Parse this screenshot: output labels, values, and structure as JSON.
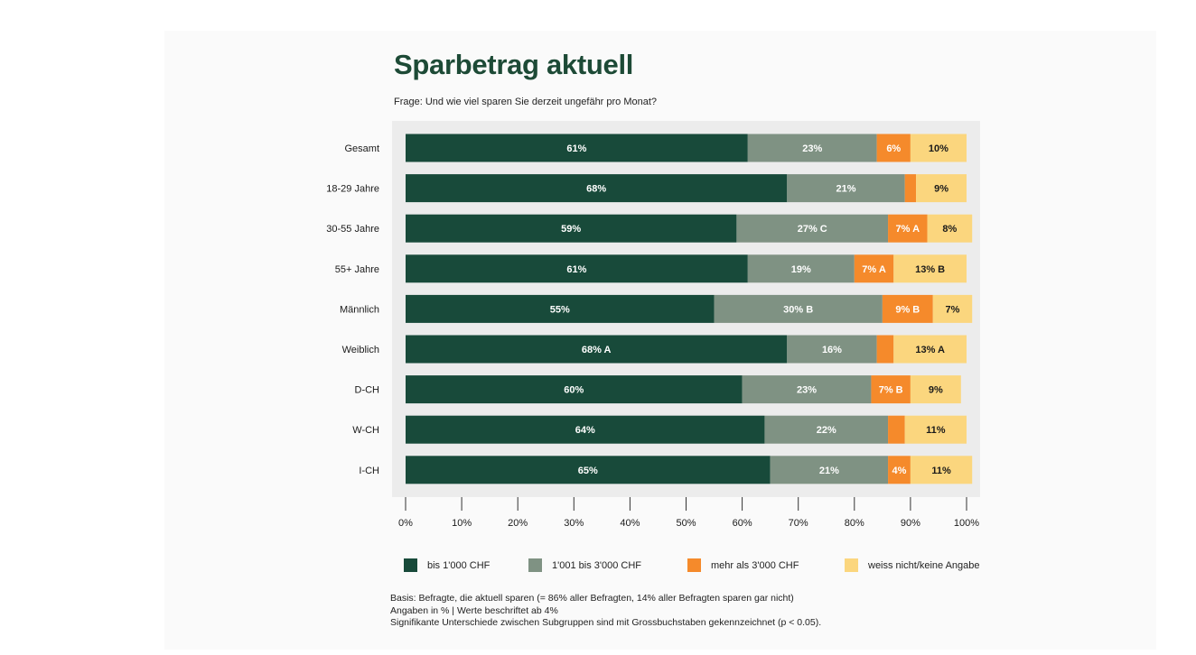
{
  "chart_data": {
    "type": "bar",
    "orientation": "horizontal",
    "stacked": true,
    "title": "Sparbetrag aktuell",
    "subtitle": "Frage: Und wie viel sparen Sie derzeit ungefähr pro Monat?",
    "categories": [
      "Gesamt",
      "18-29 Jahre",
      "30-55 Jahre",
      "55+ Jahre",
      "Männlich",
      "Weiblich",
      "D-CH",
      "W-CH",
      "I-CH"
    ],
    "series": [
      {
        "name": "bis 1'000 CHF",
        "color": "#184a3a",
        "label_color": "#ffffff",
        "values": [
          61,
          68,
          59,
          61,
          55,
          68,
          60,
          64,
          65
        ],
        "labels": [
          "61%",
          "68%",
          "59%",
          "61%",
          "55%",
          "68% A",
          "60%",
          "64%",
          "65%"
        ]
      },
      {
        "name": "1'001 bis 3'000 CHF",
        "color": "#7f9283",
        "label_color": "#ffffff",
        "values": [
          23,
          21,
          27,
          19,
          30,
          16,
          23,
          22,
          21
        ],
        "labels": [
          "23%",
          "21%",
          "27% C",
          "19%",
          "30% B",
          "16%",
          "23%",
          "22%",
          "21%"
        ]
      },
      {
        "name": "mehr als 3'000 CHF",
        "color": "#f58a2b",
        "label_color": "#ffffff",
        "values": [
          6,
          2,
          7,
          7,
          9,
          3,
          7,
          3,
          4
        ],
        "labels": [
          "6%",
          "",
          "7% A",
          "7% A",
          "9% B",
          "",
          "7% B",
          "",
          "4%"
        ]
      },
      {
        "name": "weiss nicht/keine Angabe",
        "color": "#fbd67e",
        "label_color": "#1a1a1a",
        "values": [
          10,
          9,
          8,
          13,
          7,
          13,
          9,
          11,
          11
        ],
        "labels": [
          "10%",
          "9%",
          "8%",
          "13% B",
          "7%",
          "13% A",
          "9%",
          "11%",
          "11%"
        ]
      }
    ],
    "xlim": [
      0,
      100
    ],
    "xticks": [
      0,
      10,
      20,
      30,
      40,
      50,
      60,
      70,
      80,
      90,
      100
    ],
    "xtick_labels": [
      "0%",
      "10%",
      "20%",
      "30%",
      "40%",
      "50%",
      "60%",
      "70%",
      "80%",
      "90%",
      "100%"
    ],
    "legend_position": "bottom",
    "grid": false
  },
  "notes": [
    "Basis: Befragte, die aktuell sparen (= 86% aller Befragten, 14% aller Befragten sparen gar nicht)",
    "Angaben in % | Werte beschriftet ab 4%",
    "Signifikante Unterschiede zwischen Subgruppen sind mit Grossbuchstaben gekennzeichnet (p < 0.05)."
  ]
}
